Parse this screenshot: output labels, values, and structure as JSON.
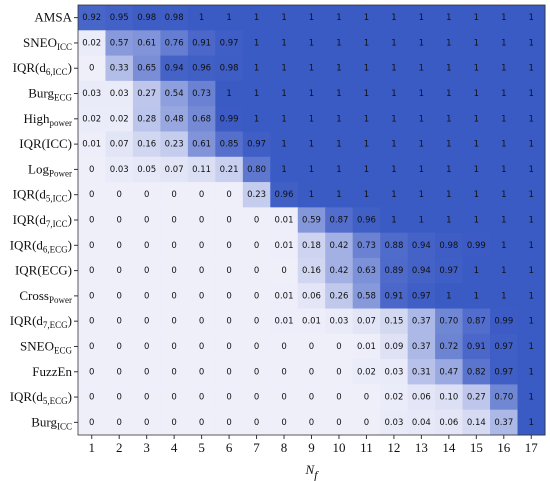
{
  "chart_data": {
    "type": "heatmap",
    "rows": [
      {
        "text": "AMSA"
      },
      {
        "text": "SNEO",
        "sub": "ICC"
      },
      {
        "text": "IQR(d",
        "sub": "6,ICC",
        "after": ")"
      },
      {
        "text": "Burg",
        "sub": "ECG"
      },
      {
        "text": "High",
        "sub": "power"
      },
      {
        "text": "IQR(ICC)"
      },
      {
        "text": "Log",
        "sub": "Power"
      },
      {
        "text": "IQR(d",
        "sub": "5,ICC",
        "after": ")"
      },
      {
        "text": "IQR(d",
        "sub": "7,ICC",
        "after": ")"
      },
      {
        "text": "IQR(d",
        "sub": "6,ECG",
        "after": ")"
      },
      {
        "text": "IQR(ECG)"
      },
      {
        "text": "Cross",
        "sub": "Power"
      },
      {
        "text": "IQR(d",
        "sub": "7,ECG",
        "after": ")"
      },
      {
        "text": "SNEO",
        "sub": "ECG"
      },
      {
        "text": "FuzzEn"
      },
      {
        "text": "IQR(d",
        "sub": "5,ECG",
        "after": ")"
      },
      {
        "text": "Burg",
        "sub": "ICC"
      }
    ],
    "categories": [
      1,
      2,
      3,
      4,
      5,
      6,
      7,
      8,
      9,
      10,
      11,
      12,
      13,
      14,
      15,
      16,
      17
    ],
    "xlabel": {
      "text": "N",
      "sub": "f"
    },
    "zlim": [
      0,
      1
    ],
    "colormap": [
      "#efeffa",
      "#3a5ac4"
    ],
    "values": [
      [
        0.92,
        0.95,
        0.98,
        0.98,
        1,
        1,
        1,
        1,
        1,
        1,
        1,
        1,
        1,
        1,
        1,
        1,
        1
      ],
      [
        0.02,
        0.57,
        0.61,
        0.76,
        0.91,
        0.97,
        1,
        1,
        1,
        1,
        1,
        1,
        1,
        1,
        1,
        1,
        1
      ],
      [
        0,
        0.33,
        0.65,
        0.94,
        0.96,
        0.98,
        1,
        1,
        1,
        1,
        1,
        1,
        1,
        1,
        1,
        1,
        1
      ],
      [
        0.03,
        0.03,
        0.27,
        0.54,
        0.73,
        1,
        1,
        1,
        1,
        1,
        1,
        1,
        1,
        1,
        1,
        1,
        1
      ],
      [
        0.02,
        0.02,
        0.28,
        0.48,
        0.68,
        0.99,
        1,
        1,
        1,
        1,
        1,
        1,
        1,
        1,
        1,
        1,
        1
      ],
      [
        0.01,
        0.07,
        0.16,
        0.23,
        0.61,
        0.85,
        0.97,
        1,
        1,
        1,
        1,
        1,
        1,
        1,
        1,
        1,
        1
      ],
      [
        0,
        0.03,
        0.05,
        0.07,
        0.11,
        0.21,
        0.8,
        1,
        1,
        1,
        1,
        1,
        1,
        1,
        1,
        1,
        1
      ],
      [
        0,
        0,
        0,
        0,
        0,
        0,
        0.23,
        0.96,
        1,
        1,
        1,
        1,
        1,
        1,
        1,
        1,
        1
      ],
      [
        0,
        0,
        0,
        0,
        0,
        0,
        0,
        0.01,
        0.59,
        0.87,
        0.96,
        1,
        1,
        1,
        1,
        1,
        1
      ],
      [
        0,
        0,
        0,
        0,
        0,
        0,
        0,
        0.01,
        0.18,
        0.42,
        0.73,
        0.88,
        0.94,
        0.98,
        0.99,
        1,
        1
      ],
      [
        0,
        0,
        0,
        0,
        0,
        0,
        0,
        0,
        0.16,
        0.42,
        0.63,
        0.89,
        0.94,
        0.97,
        1,
        1,
        1
      ],
      [
        0,
        0,
        0,
        0,
        0,
        0,
        0,
        0.01,
        0.06,
        0.26,
        0.58,
        0.91,
        0.97,
        1,
        1,
        1,
        1
      ],
      [
        0,
        0,
        0,
        0,
        0,
        0,
        0,
        0.01,
        0.01,
        0.03,
        0.07,
        0.15,
        0.37,
        0.7,
        0.87,
        0.99,
        1
      ],
      [
        0,
        0,
        0,
        0,
        0,
        0,
        0,
        0,
        0,
        0,
        0.01,
        0.09,
        0.37,
        0.72,
        0.91,
        0.97,
        1
      ],
      [
        0,
        0,
        0,
        0,
        0,
        0,
        0,
        0,
        0,
        0,
        0.02,
        0.03,
        0.31,
        0.47,
        0.82,
        0.97,
        1
      ],
      [
        0,
        0,
        0,
        0,
        0,
        0,
        0,
        0,
        0,
        0,
        0,
        0.02,
        0.06,
        0.1,
        0.27,
        0.7,
        1
      ],
      [
        0,
        0,
        0,
        0,
        0,
        0,
        0,
        0,
        0,
        0,
        0,
        0.03,
        0.04,
        0.06,
        0.14,
        0.37,
        1
      ]
    ],
    "value_labels": [
      [
        "0.92",
        "0.95",
        "0.98",
        "0.98",
        "1",
        "1",
        "1",
        "1",
        "1",
        "1",
        "1",
        "1",
        "1",
        "1",
        "1",
        "1",
        "1"
      ],
      [
        "0.02",
        "0.57",
        "0.61",
        "0.76",
        "0.91",
        "0.97",
        "1",
        "1",
        "1",
        "1",
        "1",
        "1",
        "1",
        "1",
        "1",
        "1",
        "1"
      ],
      [
        "0",
        "0.33",
        "0.65",
        "0.94",
        "0.96",
        "0.98",
        "1",
        "1",
        "1",
        "1",
        "1",
        "1",
        "1",
        "1",
        "1",
        "1",
        "1"
      ],
      [
        "0.03",
        "0.03",
        "0.27",
        "0.54",
        "0.73",
        "1",
        "1",
        "1",
        "1",
        "1",
        "1",
        "1",
        "1",
        "1",
        "1",
        "1",
        "1"
      ],
      [
        "0.02",
        "0.02",
        "0.28",
        "0.48",
        "0.68",
        "0.99",
        "1",
        "1",
        "1",
        "1",
        "1",
        "1",
        "1",
        "1",
        "1",
        "1",
        "1"
      ],
      [
        "0.01",
        "0.07",
        "0.16",
        "0.23",
        "0.61",
        "0.85",
        "0.97",
        "1",
        "1",
        "1",
        "1",
        "1",
        "1",
        "1",
        "1",
        "1",
        "1"
      ],
      [
        "0",
        "0.03",
        "0.05",
        "0.07",
        "0.11",
        "0.21",
        "0.80",
        "1",
        "1",
        "1",
        "1",
        "1",
        "1",
        "1",
        "1",
        "1",
        "1"
      ],
      [
        "0",
        "0",
        "0",
        "0",
        "0",
        "0",
        "0.23",
        "0.96",
        "1",
        "1",
        "1",
        "1",
        "1",
        "1",
        "1",
        "1",
        "1"
      ],
      [
        "0",
        "0",
        "0",
        "0",
        "0",
        "0",
        "0",
        "0.01",
        "0.59",
        "0.87",
        "0.96",
        "1",
        "1",
        "1",
        "1",
        "1",
        "1"
      ],
      [
        "0",
        "0",
        "0",
        "0",
        "0",
        "0",
        "0",
        "0.01",
        "0.18",
        "0.42",
        "0.73",
        "0.88",
        "0.94",
        "0.98",
        "0.99",
        "1",
        "1"
      ],
      [
        "0",
        "0",
        "0",
        "0",
        "0",
        "0",
        "0",
        "0",
        "0.16",
        "0.42",
        "0.63",
        "0.89",
        "0.94",
        "0.97",
        "1",
        "1",
        "1"
      ],
      [
        "0",
        "0",
        "0",
        "0",
        "0",
        "0",
        "0",
        "0.01",
        "0.06",
        "0.26",
        "0.58",
        "0.91",
        "0.97",
        "1",
        "1",
        "1",
        "1"
      ],
      [
        "0",
        "0",
        "0",
        "0",
        "0",
        "0",
        "0",
        "0.01",
        "0.01",
        "0.03",
        "0.07",
        "0.15",
        "0.37",
        "0.70",
        "0.87",
        "0.99",
        "1"
      ],
      [
        "0",
        "0",
        "0",
        "0",
        "0",
        "0",
        "0",
        "0",
        "0",
        "0",
        "0.01",
        "0.09",
        "0.37",
        "0.72",
        "0.91",
        "0.97",
        "1"
      ],
      [
        "0",
        "0",
        "0",
        "0",
        "0",
        "0",
        "0",
        "0",
        "0",
        "0",
        "0.02",
        "0.03",
        "0.31",
        "0.47",
        "0.82",
        "0.97",
        "1"
      ],
      [
        "0",
        "0",
        "0",
        "0",
        "0",
        "0",
        "0",
        "0",
        "0",
        "0",
        "0",
        "0.02",
        "0.06",
        "0.10",
        "0.27",
        "0.70",
        "1"
      ],
      [
        "0",
        "0",
        "0",
        "0",
        "0",
        "0",
        "0",
        "0",
        "0",
        "0",
        "0",
        "0.03",
        "0.04",
        "0.06",
        "0.14",
        "0.37",
        "1"
      ]
    ]
  }
}
